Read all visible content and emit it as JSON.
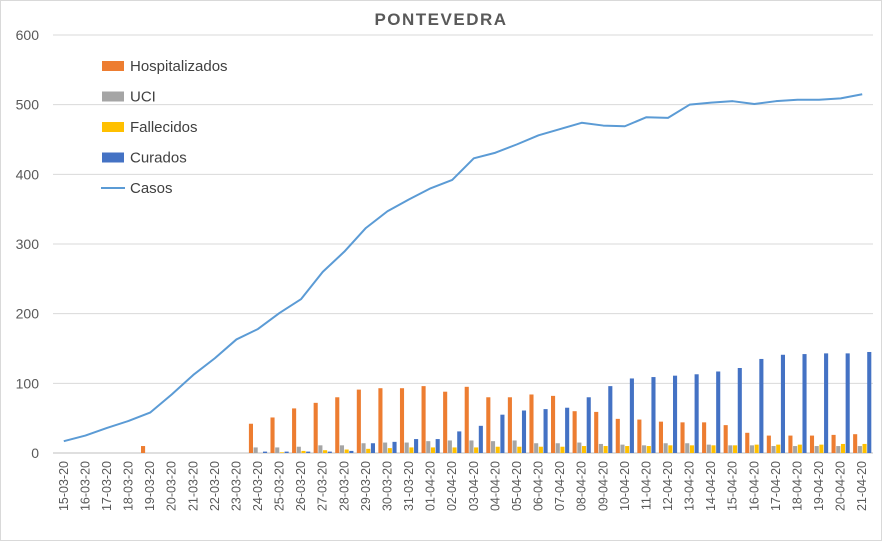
{
  "chart_data": {
    "type": "bar",
    "title": "PONTEVEDRA",
    "ylim": [
      0,
      600
    ],
    "yticks": [
      0,
      100,
      200,
      300,
      400,
      500,
      600
    ],
    "grid": "horizontal",
    "legend_position": "top-left",
    "categories": [
      "15-03-20",
      "16-03-20",
      "17-03-20",
      "18-03-20",
      "19-03-20",
      "20-03-20",
      "21-03-20",
      "22-03-20",
      "23-03-20",
      "24-03-20",
      "25-03-20",
      "26-03-20",
      "27-03-20",
      "28-03-20",
      "29-03-20",
      "30-03-20",
      "31-03-20",
      "01-04-20",
      "02-04-20",
      "03-04-20",
      "04-04-20",
      "05-04-20",
      "06-04-20",
      "07-04-20",
      "08-04-20",
      "09-04-20",
      "10-04-20",
      "11-04-20",
      "12-04-20",
      "13-04-20",
      "14-04-20",
      "15-04-20",
      "16-04-20",
      "17-04-20",
      "18-04-20",
      "19-04-20",
      "20-04-20",
      "21-04-20"
    ],
    "series": [
      {
        "name": "Hospitalizados",
        "kind": "bar",
        "color": "#ED7D31",
        "values": [
          null,
          null,
          null,
          null,
          10,
          null,
          null,
          null,
          null,
          42,
          51,
          64,
          72,
          80,
          91,
          93,
          93,
          96,
          88,
          95,
          80,
          80,
          84,
          82,
          60,
          59,
          49,
          48,
          45,
          44,
          44,
          40,
          29,
          25,
          25,
          25,
          26,
          27
        ]
      },
      {
        "name": "UCI",
        "kind": "bar",
        "color": "#A5A5A5",
        "values": [
          null,
          null,
          null,
          null,
          null,
          null,
          null,
          null,
          null,
          8,
          8,
          9,
          11,
          11,
          14,
          15,
          15,
          17,
          18,
          18,
          17,
          18,
          14,
          14,
          15,
          13,
          12,
          11,
          14,
          14,
          12,
          11,
          11,
          10,
          10,
          10,
          10,
          10
        ]
      },
      {
        "name": "Fallecidos",
        "kind": "bar",
        "color": "#FFC000",
        "values": [
          null,
          null,
          null,
          null,
          null,
          null,
          null,
          null,
          null,
          0,
          1,
          3,
          4,
          5,
          6,
          7,
          8,
          8,
          8,
          8,
          9,
          9,
          9,
          9,
          10,
          10,
          10,
          10,
          11,
          11,
          11,
          11,
          12,
          12,
          12,
          12,
          13,
          13
        ]
      },
      {
        "name": "Curados",
        "kind": "bar",
        "color": "#4472C4",
        "values": [
          null,
          null,
          null,
          null,
          null,
          null,
          null,
          null,
          null,
          2,
          2,
          2,
          2,
          3,
          14,
          16,
          20,
          20,
          31,
          39,
          55,
          61,
          63,
          65,
          80,
          96,
          107,
          109,
          111,
          113,
          117,
          122,
          135,
          141,
          142,
          143,
          143,
          145
        ]
      },
      {
        "name": "Casos",
        "kind": "line",
        "color": "#5B9BD5",
        "values": [
          17,
          25,
          36,
          46,
          58,
          84,
          112,
          136,
          163,
          178,
          201,
          221,
          260,
          289,
          323,
          347,
          364,
          380,
          392,
          423,
          431,
          443,
          456,
          465,
          474,
          470,
          469,
          482,
          481,
          500,
          503,
          505,
          501,
          505,
          507,
          507,
          509,
          515
        ]
      }
    ]
  }
}
